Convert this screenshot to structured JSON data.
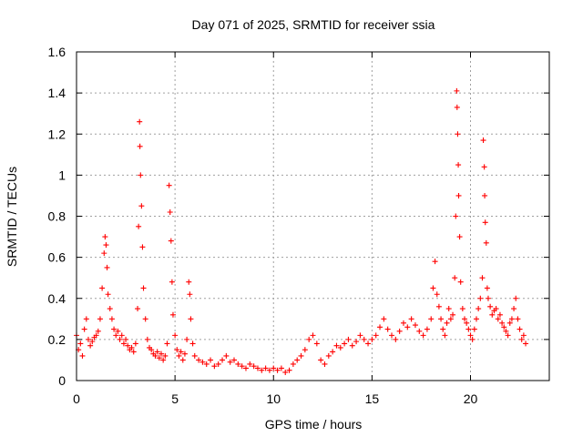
{
  "chart_data": {
    "type": "scatter",
    "title": "Day 071 of 2025, SRMTID for receiver ssia",
    "xlabel": "GPS time / hours",
    "ylabel": "SRMTID / TECUs",
    "xlim": [
      0,
      24
    ],
    "ylim": [
      0,
      1.6
    ],
    "x_ticks": [
      0,
      5,
      10,
      15,
      20
    ],
    "x_tick_labels": [
      "0",
      "5",
      "10",
      "15",
      "20"
    ],
    "y_ticks": [
      0,
      0.2,
      0.4,
      0.6,
      0.8,
      1.0,
      1.2,
      1.4,
      1.6
    ],
    "y_tick_labels": [
      "0",
      "0.2",
      "0.4",
      "0.6",
      "0.8",
      "1",
      "1.2",
      "1.4",
      "1.6"
    ],
    "grid": true,
    "marker": "+",
    "marker_color": "#ff0000",
    "series": [
      {
        "name": "SRMTID",
        "points": [
          [
            0.0,
            0.22
          ],
          [
            0.1,
            0.15
          ],
          [
            0.2,
            0.18
          ],
          [
            0.3,
            0.12
          ],
          [
            0.4,
            0.25
          ],
          [
            0.5,
            0.3
          ],
          [
            0.6,
            0.2
          ],
          [
            0.7,
            0.17
          ],
          [
            0.8,
            0.19
          ],
          [
            0.9,
            0.21
          ],
          [
            1.0,
            0.22
          ],
          [
            1.1,
            0.24
          ],
          [
            1.2,
            0.3
          ],
          [
            1.3,
            0.45
          ],
          [
            1.4,
            0.62
          ],
          [
            1.45,
            0.7
          ],
          [
            1.5,
            0.66
          ],
          [
            1.55,
            0.55
          ],
          [
            1.6,
            0.42
          ],
          [
            1.7,
            0.35
          ],
          [
            1.8,
            0.3
          ],
          [
            1.9,
            0.25
          ],
          [
            2.0,
            0.22
          ],
          [
            2.1,
            0.24
          ],
          [
            2.2,
            0.2
          ],
          [
            2.3,
            0.22
          ],
          [
            2.4,
            0.18
          ],
          [
            2.5,
            0.2
          ],
          [
            2.6,
            0.17
          ],
          [
            2.7,
            0.15
          ],
          [
            2.8,
            0.16
          ],
          [
            2.9,
            0.14
          ],
          [
            3.0,
            0.18
          ],
          [
            3.1,
            0.35
          ],
          [
            3.15,
            0.75
          ],
          [
            3.2,
            1.26
          ],
          [
            3.22,
            1.14
          ],
          [
            3.25,
            1.0
          ],
          [
            3.3,
            0.85
          ],
          [
            3.35,
            0.65
          ],
          [
            3.4,
            0.45
          ],
          [
            3.5,
            0.3
          ],
          [
            3.6,
            0.2
          ],
          [
            3.7,
            0.16
          ],
          [
            3.8,
            0.15
          ],
          [
            3.9,
            0.13
          ],
          [
            4.0,
            0.12
          ],
          [
            4.1,
            0.14
          ],
          [
            4.2,
            0.11
          ],
          [
            4.3,
            0.13
          ],
          [
            4.4,
            0.1
          ],
          [
            4.5,
            0.12
          ],
          [
            4.6,
            0.18
          ],
          [
            4.7,
            0.95
          ],
          [
            4.75,
            0.82
          ],
          [
            4.8,
            0.68
          ],
          [
            4.85,
            0.48
          ],
          [
            4.9,
            0.32
          ],
          [
            5.0,
            0.22
          ],
          [
            5.1,
            0.15
          ],
          [
            5.2,
            0.12
          ],
          [
            5.3,
            0.14
          ],
          [
            5.4,
            0.1
          ],
          [
            5.5,
            0.13
          ],
          [
            5.6,
            0.2
          ],
          [
            5.7,
            0.48
          ],
          [
            5.75,
            0.42
          ],
          [
            5.8,
            0.3
          ],
          [
            5.9,
            0.18
          ],
          [
            6.0,
            0.12
          ],
          [
            6.2,
            0.1
          ],
          [
            6.4,
            0.09
          ],
          [
            6.6,
            0.08
          ],
          [
            6.8,
            0.1
          ],
          [
            7.0,
            0.07
          ],
          [
            7.2,
            0.08
          ],
          [
            7.4,
            0.1
          ],
          [
            7.6,
            0.12
          ],
          [
            7.8,
            0.09
          ],
          [
            8.0,
            0.1
          ],
          [
            8.2,
            0.08
          ],
          [
            8.4,
            0.07
          ],
          [
            8.6,
            0.06
          ],
          [
            8.8,
            0.08
          ],
          [
            9.0,
            0.07
          ],
          [
            9.2,
            0.06
          ],
          [
            9.4,
            0.05
          ],
          [
            9.6,
            0.06
          ],
          [
            9.8,
            0.05
          ],
          [
            10.0,
            0.06
          ],
          [
            10.2,
            0.05
          ],
          [
            10.4,
            0.06
          ],
          [
            10.6,
            0.04
          ],
          [
            10.8,
            0.05
          ],
          [
            11.0,
            0.08
          ],
          [
            11.2,
            0.1
          ],
          [
            11.4,
            0.12
          ],
          [
            11.6,
            0.15
          ],
          [
            11.8,
            0.2
          ],
          [
            12.0,
            0.22
          ],
          [
            12.2,
            0.18
          ],
          [
            12.4,
            0.1
          ],
          [
            12.6,
            0.08
          ],
          [
            12.8,
            0.12
          ],
          [
            13.0,
            0.14
          ],
          [
            13.2,
            0.17
          ],
          [
            13.4,
            0.16
          ],
          [
            13.6,
            0.18
          ],
          [
            13.8,
            0.2
          ],
          [
            14.0,
            0.17
          ],
          [
            14.2,
            0.19
          ],
          [
            14.4,
            0.22
          ],
          [
            14.6,
            0.2
          ],
          [
            14.8,
            0.18
          ],
          [
            15.0,
            0.2
          ],
          [
            15.2,
            0.22
          ],
          [
            15.4,
            0.26
          ],
          [
            15.6,
            0.3
          ],
          [
            15.8,
            0.25
          ],
          [
            16.0,
            0.22
          ],
          [
            16.2,
            0.2
          ],
          [
            16.4,
            0.24
          ],
          [
            16.6,
            0.28
          ],
          [
            16.8,
            0.26
          ],
          [
            17.0,
            0.3
          ],
          [
            17.2,
            0.27
          ],
          [
            17.4,
            0.24
          ],
          [
            17.6,
            0.22
          ],
          [
            17.8,
            0.25
          ],
          [
            18.0,
            0.3
          ],
          [
            18.1,
            0.45
          ],
          [
            18.2,
            0.58
          ],
          [
            18.3,
            0.42
          ],
          [
            18.4,
            0.36
          ],
          [
            18.5,
            0.3
          ],
          [
            18.6,
            0.25
          ],
          [
            18.7,
            0.22
          ],
          [
            18.8,
            0.28
          ],
          [
            18.9,
            0.35
          ],
          [
            19.0,
            0.3
          ],
          [
            19.1,
            0.32
          ],
          [
            19.2,
            0.5
          ],
          [
            19.25,
            0.8
          ],
          [
            19.3,
            1.41
          ],
          [
            19.32,
            1.33
          ],
          [
            19.35,
            1.2
          ],
          [
            19.38,
            1.05
          ],
          [
            19.4,
            0.9
          ],
          [
            19.45,
            0.7
          ],
          [
            19.5,
            0.48
          ],
          [
            19.6,
            0.35
          ],
          [
            19.7,
            0.3
          ],
          [
            19.8,
            0.28
          ],
          [
            19.9,
            0.25
          ],
          [
            20.0,
            0.22
          ],
          [
            20.1,
            0.2
          ],
          [
            20.2,
            0.25
          ],
          [
            20.3,
            0.3
          ],
          [
            20.4,
            0.35
          ],
          [
            20.5,
            0.4
          ],
          [
            20.6,
            0.5
          ],
          [
            20.65,
            1.17
          ],
          [
            20.7,
            1.04
          ],
          [
            20.72,
            0.9
          ],
          [
            20.75,
            0.77
          ],
          [
            20.8,
            0.67
          ],
          [
            20.85,
            0.45
          ],
          [
            20.9,
            0.4
          ],
          [
            21.0,
            0.36
          ],
          [
            21.1,
            0.32
          ],
          [
            21.2,
            0.34
          ],
          [
            21.3,
            0.35
          ],
          [
            21.4,
            0.3
          ],
          [
            21.5,
            0.32
          ],
          [
            21.6,
            0.28
          ],
          [
            21.7,
            0.26
          ],
          [
            21.8,
            0.24
          ],
          [
            21.9,
            0.22
          ],
          [
            22.0,
            0.28
          ],
          [
            22.1,
            0.3
          ],
          [
            22.2,
            0.35
          ],
          [
            22.3,
            0.4
          ],
          [
            22.4,
            0.3
          ],
          [
            22.5,
            0.25
          ],
          [
            22.6,
            0.2
          ],
          [
            22.7,
            0.22
          ],
          [
            22.8,
            0.18
          ]
        ]
      }
    ]
  }
}
